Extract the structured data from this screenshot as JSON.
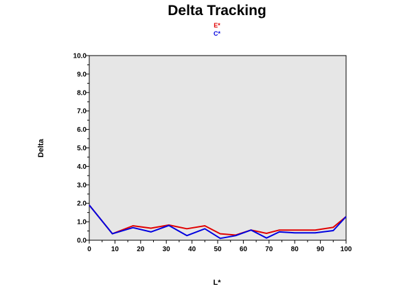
{
  "chart_data": {
    "type": "line",
    "title": "Delta Tracking",
    "xlabel": "L*",
    "ylabel": "Delta",
    "xlim": [
      0,
      100
    ],
    "ylim": [
      0,
      10
    ],
    "xticks": [
      0,
      10,
      20,
      30,
      40,
      50,
      60,
      70,
      80,
      90,
      100
    ],
    "yticks": [
      0.0,
      1.0,
      2.0,
      3.0,
      4.0,
      5.0,
      6.0,
      7.0,
      8.0,
      9.0,
      10.0
    ],
    "grid": false,
    "legend_position": "top-center",
    "plot_background": "#e6e6e6",
    "series": [
      {
        "name": "E*",
        "color": "#e00000",
        "x": [
          0,
          9,
          17,
          24,
          31,
          38,
          45,
          51,
          57,
          63,
          69,
          74,
          80,
          88,
          95,
          100
        ],
        "y": [
          1.9,
          0.35,
          0.78,
          0.65,
          0.82,
          0.62,
          0.78,
          0.35,
          0.28,
          0.55,
          0.37,
          0.55,
          0.55,
          0.55,
          0.7,
          1.28
        ]
      },
      {
        "name": "C*",
        "color": "#0000e0",
        "x": [
          0,
          9,
          17,
          24,
          31,
          38,
          45,
          51,
          57,
          63,
          69,
          74,
          80,
          88,
          95,
          100
        ],
        "y": [
          1.9,
          0.35,
          0.68,
          0.45,
          0.8,
          0.25,
          0.62,
          0.1,
          0.25,
          0.55,
          0.12,
          0.45,
          0.4,
          0.4,
          0.52,
          1.28
        ]
      }
    ]
  }
}
